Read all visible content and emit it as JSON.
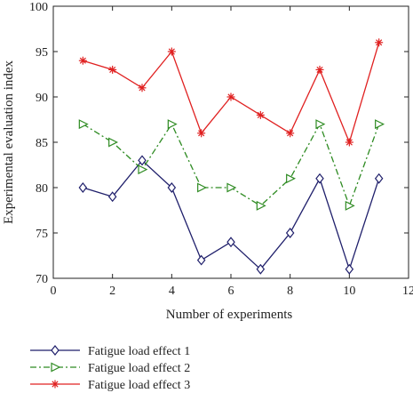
{
  "chart_data": {
    "type": "line",
    "title": "",
    "xlabel": "Number of experiments",
    "ylabel": "Experimental evaluation index",
    "xlim": [
      0,
      12
    ],
    "ylim": [
      70,
      100
    ],
    "xticks": [
      0,
      2,
      4,
      6,
      8,
      10,
      12
    ],
    "yticks": [
      70,
      75,
      80,
      85,
      90,
      95,
      100
    ],
    "grid": false,
    "legend_placement": "below-left",
    "x": [
      1,
      2,
      3,
      4,
      5,
      6,
      7,
      8,
      9,
      10,
      11
    ],
    "series": [
      {
        "name": "Fatigue load effect 1",
        "values": [
          80,
          79,
          83,
          80,
          72,
          74,
          71,
          75,
          81,
          71,
          81
        ],
        "color": "#1f1f6b",
        "marker": "diamond",
        "dash": "solid"
      },
      {
        "name": "Fatigue load effect 2",
        "values": [
          87,
          85,
          82,
          87,
          80,
          80,
          78,
          81,
          87,
          78,
          87
        ],
        "color": "#2e8b22",
        "marker": "triangle-right",
        "dash": "dashdot"
      },
      {
        "name": "Fatigue load effect 3",
        "values": [
          94,
          93,
          91,
          95,
          86,
          90,
          88,
          86,
          93,
          85,
          96
        ],
        "color": "#e02020",
        "marker": "asterisk",
        "dash": "solid"
      }
    ]
  }
}
